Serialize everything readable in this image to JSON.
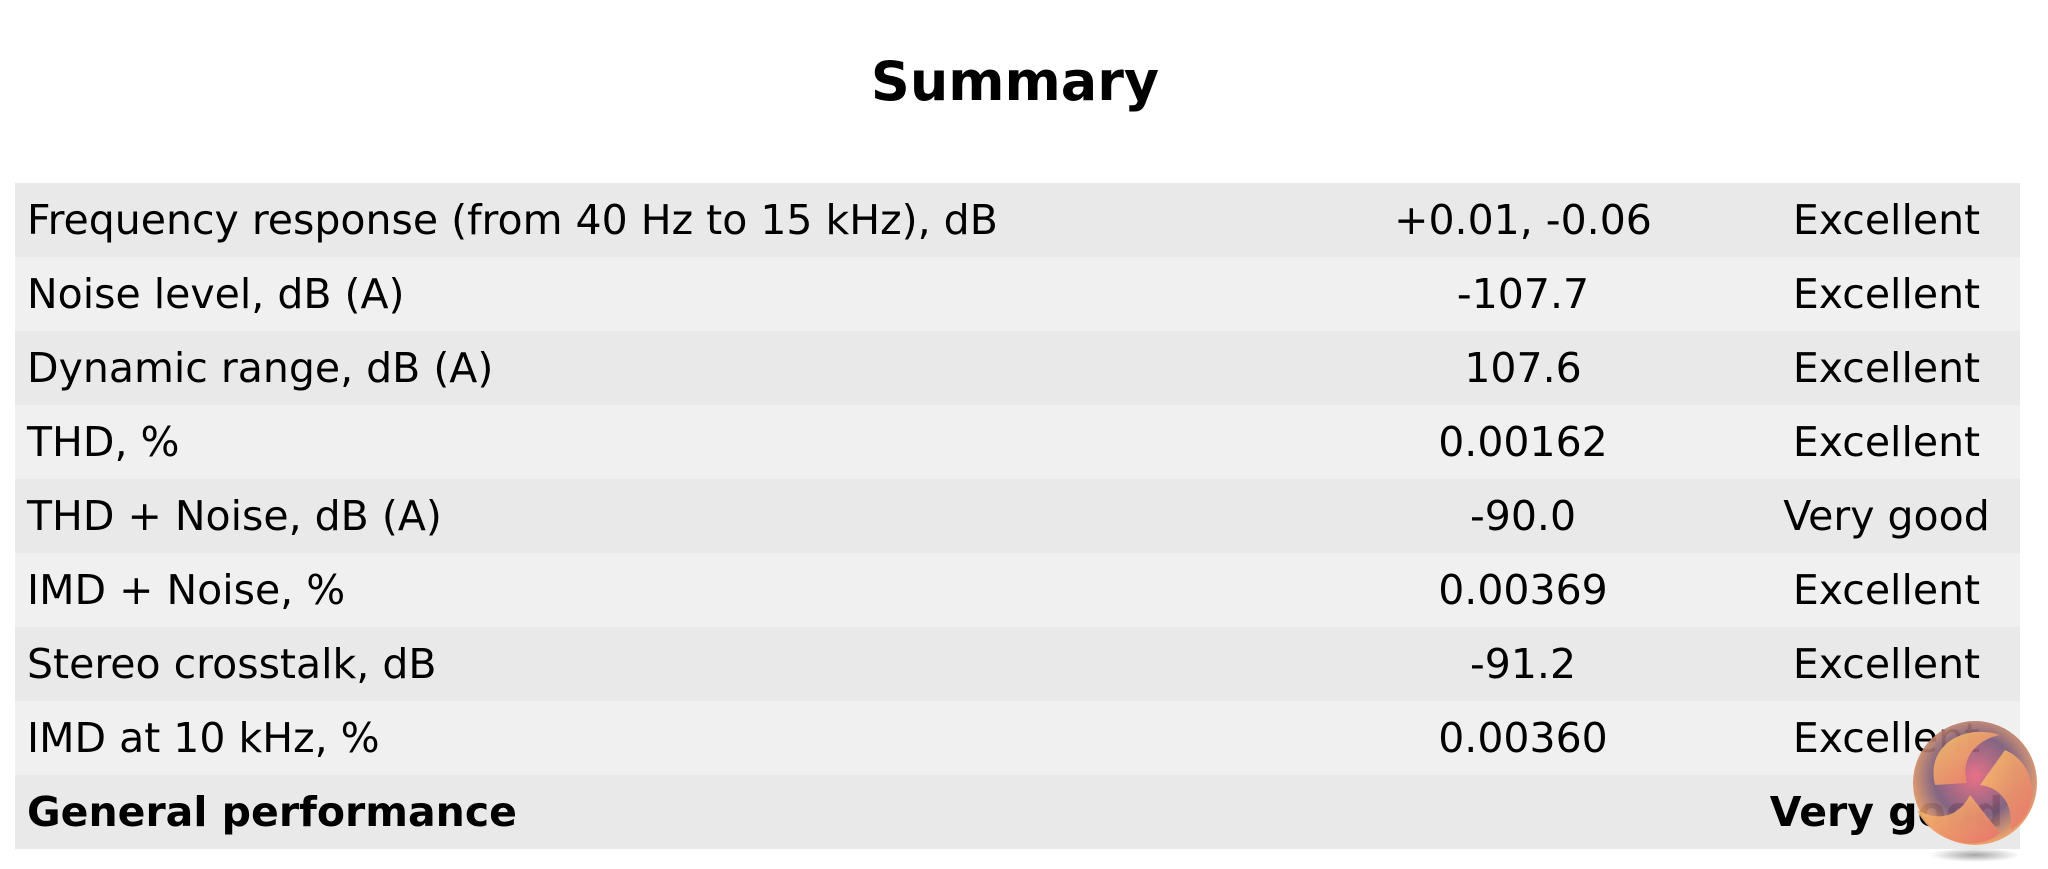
{
  "title": "Summary",
  "rows": [
    {
      "parameter": "Frequency response (from 40 Hz to 15 kHz), dB",
      "value": "+0.01, -0.06",
      "rating": "Excellent"
    },
    {
      "parameter": "Noise level, dB (A)",
      "value": "-107.7",
      "rating": "Excellent"
    },
    {
      "parameter": "Dynamic range, dB (A)",
      "value": "107.6",
      "rating": "Excellent"
    },
    {
      "parameter": "THD, %",
      "value": "0.00162",
      "rating": "Excellent"
    },
    {
      "parameter": "THD + Noise, dB (A)",
      "value": "-90.0",
      "rating": "Very good"
    },
    {
      "parameter": "IMD + Noise, %",
      "value": "0.00369",
      "rating": "Excellent"
    },
    {
      "parameter": "Stereo crosstalk, dB",
      "value": "-91.2",
      "rating": "Excellent"
    },
    {
      "parameter": "IMD at 10 kHz, %",
      "value": "0.00360",
      "rating": "Excellent"
    }
  ],
  "total": {
    "parameter": "General performance",
    "value": "",
    "rating": "Very good"
  },
  "colors": {
    "row_odd": "#e9e9e9",
    "row_even": "#f0f0f0"
  },
  "logo": {
    "icon": "kitguru-swirl-logo"
  }
}
